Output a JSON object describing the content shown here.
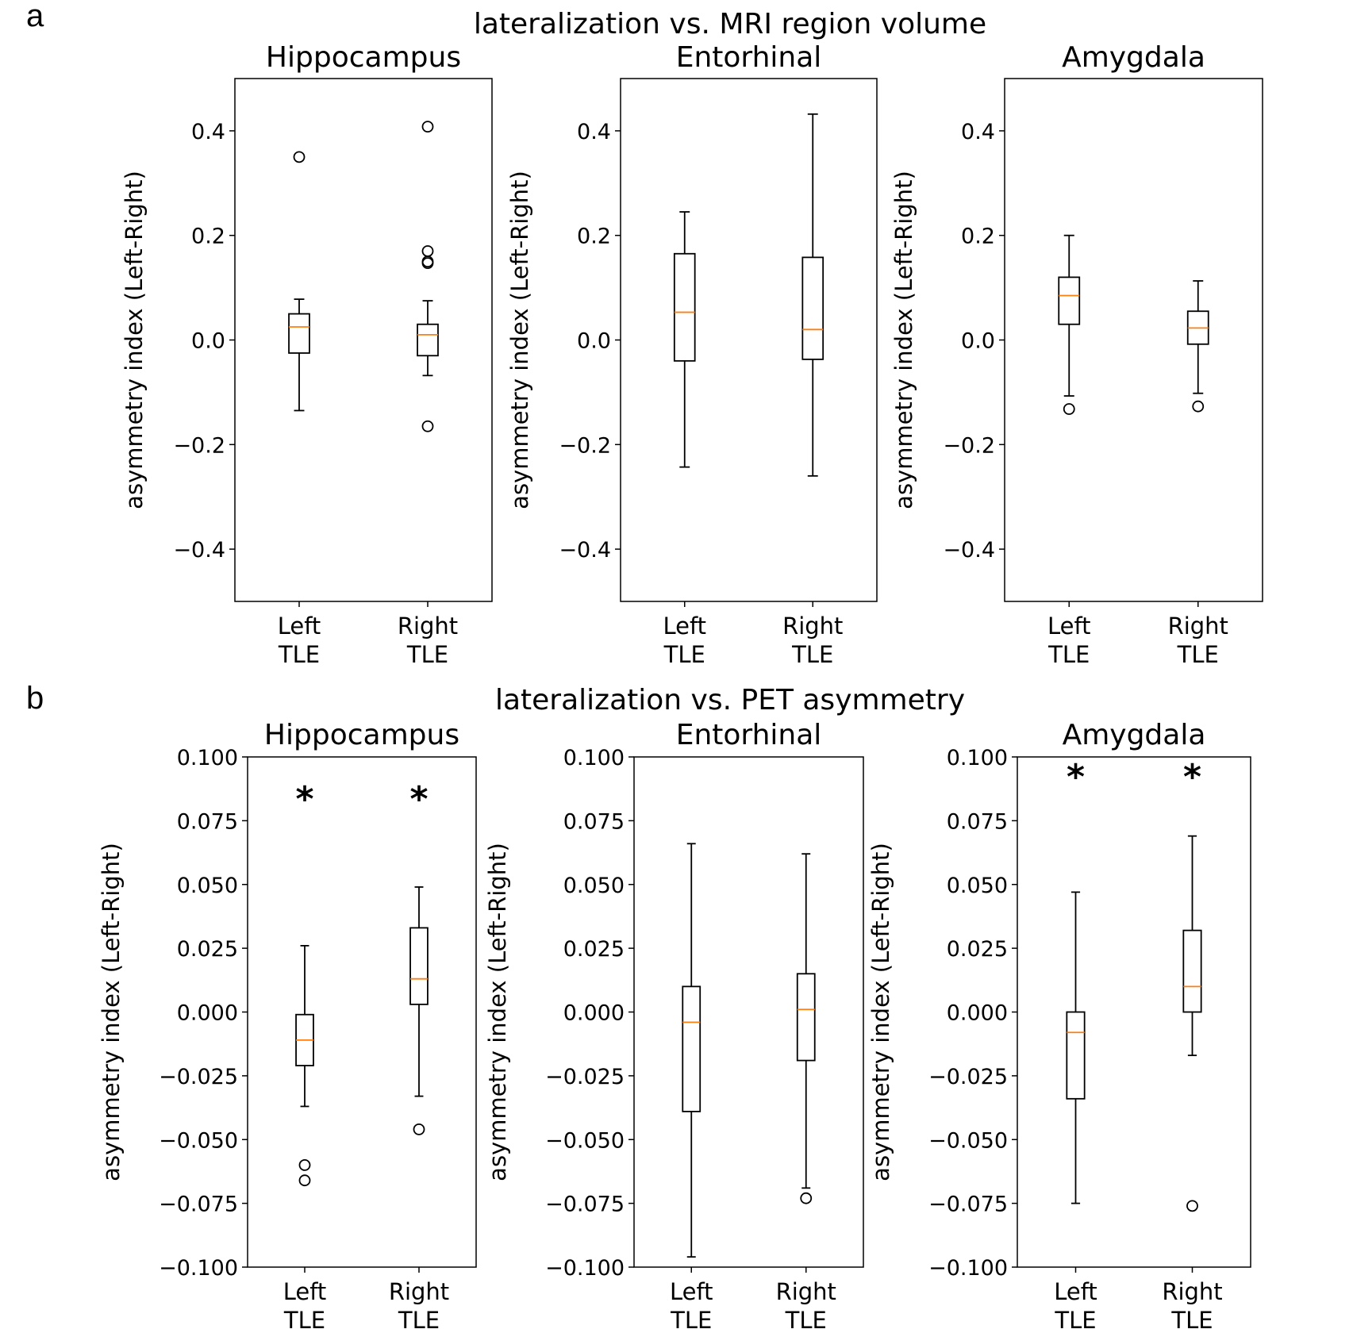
{
  "figure": {
    "colors": {
      "axes": "#000000",
      "median": "#ff7f0e",
      "box": "#000000",
      "background": "#ffffff"
    }
  },
  "chart_data": [
    {
      "panel": "a",
      "suptitle": "lateralization vs. MRI region volume",
      "subplots": [
        {
          "type": "box",
          "title": "Hippocampus",
          "ylabel": "asymmetry index (Left-Right)",
          "ylim": [
            -0.5,
            0.5
          ],
          "yticks": [
            0.4,
            0.2,
            0.0,
            -0.2,
            -0.4
          ],
          "ytick_labels": [
            "0.4",
            "0.2",
            "0.0",
            "−0.2",
            "−0.4"
          ],
          "categories": [
            [
              "Left",
              "TLE"
            ],
            [
              "Right",
              "TLE"
            ]
          ],
          "boxes": [
            {
              "whislo": -0.135,
              "q1": -0.025,
              "med": 0.025,
              "q3": 0.05,
              "whishi": 0.078,
              "fliers": [
                0.35
              ]
            },
            {
              "whislo": -0.068,
              "q1": -0.03,
              "med": 0.01,
              "q3": 0.03,
              "whishi": 0.075,
              "fliers": [
                0.408,
                0.17,
                0.15,
                0.147,
                -0.165
              ]
            }
          ],
          "significance": [
            "",
            ""
          ]
        },
        {
          "type": "box",
          "title": "Entorhinal",
          "ylabel": "asymmetry index (Left-Right)",
          "ylim": [
            -0.5,
            0.5
          ],
          "yticks": [
            0.4,
            0.2,
            0.0,
            -0.2,
            -0.4
          ],
          "ytick_labels": [
            "0.4",
            "0.2",
            "0.0",
            "−0.2",
            "−0.4"
          ],
          "categories": [
            [
              "Left",
              "TLE"
            ],
            [
              "Right",
              "TLE"
            ]
          ],
          "boxes": [
            {
              "whislo": -0.243,
              "q1": -0.04,
              "med": 0.053,
              "q3": 0.165,
              "whishi": 0.245,
              "fliers": []
            },
            {
              "whislo": -0.26,
              "q1": -0.037,
              "med": 0.02,
              "q3": 0.158,
              "whishi": 0.432,
              "fliers": []
            }
          ],
          "significance": [
            "",
            ""
          ]
        },
        {
          "type": "box",
          "title": "Amygdala",
          "ylabel": "asymmetry index (Left-Right)",
          "ylim": [
            -0.5,
            0.5
          ],
          "yticks": [
            0.4,
            0.2,
            0.0,
            -0.2,
            -0.4
          ],
          "ytick_labels": [
            "0.4",
            "0.2",
            "0.0",
            "−0.2",
            "−0.4"
          ],
          "categories": [
            [
              "Left",
              "TLE"
            ],
            [
              "Right",
              "TLE"
            ]
          ],
          "boxes": [
            {
              "whislo": -0.107,
              "q1": 0.03,
              "med": 0.085,
              "q3": 0.12,
              "whishi": 0.2,
              "fliers": [
                -0.132
              ]
            },
            {
              "whislo": -0.102,
              "q1": -0.008,
              "med": 0.023,
              "q3": 0.055,
              "whishi": 0.113,
              "fliers": [
                -0.127
              ]
            }
          ],
          "significance": [
            "",
            ""
          ]
        }
      ]
    },
    {
      "panel": "b",
      "suptitle": "lateralization vs. PET asymmetry",
      "subplots": [
        {
          "type": "box",
          "title": "Hippocampus",
          "ylabel": "asymmetry index (Left-Right)",
          "ylim": [
            -0.1,
            0.1
          ],
          "yticks": [
            0.1,
            0.075,
            0.05,
            0.025,
            0.0,
            -0.025,
            -0.05,
            -0.075,
            -0.1
          ],
          "ytick_labels": [
            "0.100",
            "0.075",
            "0.050",
            "0.025",
            "0.000",
            "−0.025",
            "−0.050",
            "−0.075",
            "−0.100"
          ],
          "categories": [
            [
              "Left",
              "TLE"
            ],
            [
              "Right",
              "TLE"
            ]
          ],
          "boxes": [
            {
              "whislo": -0.037,
              "q1": -0.021,
              "med": -0.011,
              "q3": -0.001,
              "whishi": 0.026,
              "fliers": [
                -0.06,
                -0.066
              ]
            },
            {
              "whislo": -0.033,
              "q1": 0.003,
              "med": 0.013,
              "q3": 0.033,
              "whishi": 0.049,
              "fliers": [
                -0.046
              ]
            }
          ],
          "significance": [
            "*",
            "*"
          ]
        },
        {
          "type": "box",
          "title": "Entorhinal",
          "ylabel": "asymmetry index (Left-Right)",
          "ylim": [
            -0.1,
            0.1
          ],
          "yticks": [
            0.1,
            0.075,
            0.05,
            0.025,
            0.0,
            -0.025,
            -0.05,
            -0.075,
            -0.1
          ],
          "ytick_labels": [
            "0.100",
            "0.075",
            "0.050",
            "0.025",
            "0.000",
            "−0.025",
            "−0.050",
            "−0.075",
            "−0.100"
          ],
          "categories": [
            [
              "Left",
              "TLE"
            ],
            [
              "Right",
              "TLE"
            ]
          ],
          "boxes": [
            {
              "whislo": -0.096,
              "q1": -0.039,
              "med": -0.004,
              "q3": 0.01,
              "whishi": 0.066,
              "fliers": []
            },
            {
              "whislo": -0.069,
              "q1": -0.019,
              "med": 0.001,
              "q3": 0.015,
              "whishi": 0.062,
              "fliers": [
                -0.073
              ]
            }
          ],
          "significance": [
            "",
            ""
          ]
        },
        {
          "type": "box",
          "title": "Amygdala",
          "ylabel": "asymmetry index (Left-Right)",
          "ylim": [
            -0.1,
            0.1
          ],
          "yticks": [
            0.1,
            0.075,
            0.05,
            0.025,
            0.0,
            -0.025,
            -0.05,
            -0.075,
            -0.1
          ],
          "ytick_labels": [
            "0.100",
            "0.075",
            "0.050",
            "0.025",
            "0.000",
            "−0.025",
            "−0.050",
            "−0.075",
            "−0.100"
          ],
          "categories": [
            [
              "Left",
              "TLE"
            ],
            [
              "Right",
              "TLE"
            ]
          ],
          "boxes": [
            {
              "whislo": -0.075,
              "q1": -0.034,
              "med": -0.008,
              "q3": 0.0,
              "whishi": 0.047,
              "fliers": []
            },
            {
              "whislo": -0.017,
              "q1": 0.0,
              "med": 0.01,
              "q3": 0.032,
              "whishi": 0.069,
              "fliers": [
                -0.076
              ]
            }
          ],
          "significance": [
            "*",
            "*"
          ]
        }
      ]
    }
  ]
}
